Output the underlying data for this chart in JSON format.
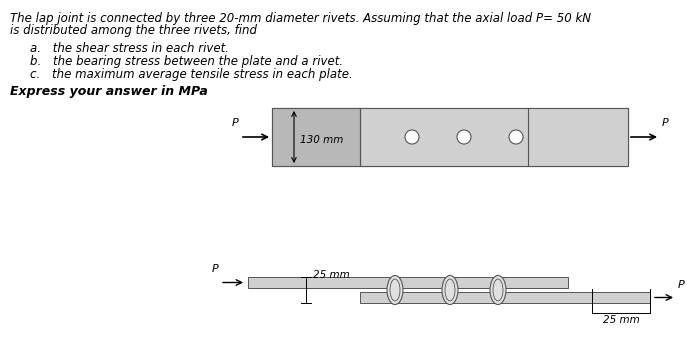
{
  "title_line1": "The lap joint is connected by three 20-mm diameter rivets. Assuming that the axial load P= 50 kN",
  "title_line2": "is distributed among the three rivets, find",
  "item_a": "a. the shear stress in each rivet.",
  "item_b": "b. the bearing stress between the plate and a rivet.",
  "item_c": "c. the maximum average tensile stress in each plate.",
  "express_text": "Express your answer in MPa",
  "label_130": "130 mm",
  "label_25a": "25 mm",
  "label_25b": "25 mm",
  "label_P": "P",
  "plate_color_light": "#d0d0d0",
  "plate_color_dark": "#b8b8b8",
  "plate_edge_color": "#555555",
  "rivet_fill": "#e0e0e0",
  "rivet_edge": "#555555",
  "bg_color": "#ffffff",
  "text_color": "#000000"
}
